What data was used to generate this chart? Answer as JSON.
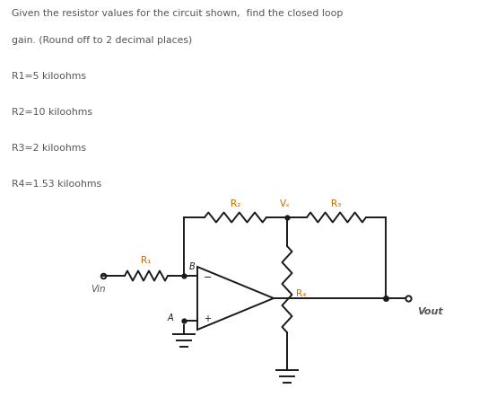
{
  "title_line1": "Given the resistor values for the circuit shown,  find the closed loop",
  "title_line2": "gain. (Round off to 2 decimal places)",
  "r1_label": "R1=5 kiloohms",
  "r2_label": "R2=10 kiloohms",
  "r3_label": "R3=2 kiloohms",
  "r4_label": "R4=1.53 kiloohms",
  "bg_color": "#ffffff",
  "text_color": "#555555",
  "line_color": "#1a1a1a",
  "label_color": "#cc6600",
  "fig_width": 5.44,
  "fig_height": 4.62,
  "dpi": 100
}
